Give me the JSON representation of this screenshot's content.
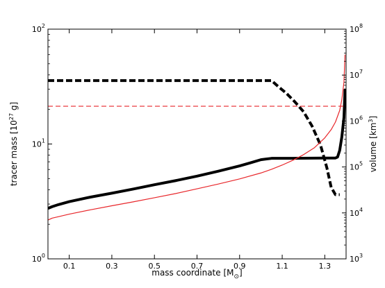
{
  "chart_data": {
    "type": "line",
    "title": "",
    "xlabel_main": "mass coordinate [M",
    "xlabel_sub": "⊙",
    "xlabel_end": "]",
    "ylabel_left_main": "tracer mass [10",
    "ylabel_left_sup": "27",
    "ylabel_left_end": " g]",
    "ylabel_right_main": "volume [km",
    "ylabel_right_sup": "3",
    "ylabel_right_end": "]",
    "xlim": [
      0.0,
      1.4
    ],
    "ylim_left": [
      1,
      100
    ],
    "ylim_right": [
      1000,
      100000000
    ],
    "yscale": "log",
    "grid": false,
    "x_ticks": [
      {
        "value": 0.1,
        "label": "0.1"
      },
      {
        "value": 0.3,
        "label": "0.3"
      },
      {
        "value": 0.5,
        "label": "0.5"
      },
      {
        "value": 0.7,
        "label": "0.7"
      },
      {
        "value": 0.9,
        "label": "0.9"
      },
      {
        "value": 1.1,
        "label": "1.1"
      },
      {
        "value": 1.3,
        "label": "1.3"
      }
    ],
    "y_left_ticks": [
      {
        "value": 1,
        "base": "10",
        "exp": "0"
      },
      {
        "value": 10,
        "base": "10",
        "exp": "1"
      },
      {
        "value": 100,
        "base": "10",
        "exp": "2"
      }
    ],
    "y_right_ticks": [
      {
        "value": 1000,
        "base": "10",
        "exp": "3"
      },
      {
        "value": 10000,
        "base": "10",
        "exp": "4"
      },
      {
        "value": 100000,
        "base": "10",
        "exp": "5"
      },
      {
        "value": 1000000,
        "base": "10",
        "exp": "6"
      },
      {
        "value": 10000000,
        "base": "10",
        "exp": "7"
      },
      {
        "value": 100000000,
        "base": "10",
        "exp": "8"
      }
    ],
    "series": [
      {
        "axis": "left",
        "color": "#000000",
        "style": "solid",
        "width": 4,
        "x": [
          0.0,
          0.02,
          0.05,
          0.1,
          0.2,
          0.3,
          0.4,
          0.5,
          0.6,
          0.7,
          0.8,
          0.9,
          0.95,
          1.0,
          1.05,
          1.1,
          1.15,
          1.2,
          1.25,
          1.3,
          1.35,
          1.36,
          1.37,
          1.38,
          1.39,
          1.395
        ],
        "y": [
          2.75,
          2.85,
          2.97,
          3.15,
          3.45,
          3.73,
          4.05,
          4.42,
          4.8,
          5.25,
          5.8,
          6.45,
          6.85,
          7.3,
          7.5,
          7.5,
          7.5,
          7.52,
          7.53,
          7.55,
          7.55,
          7.7,
          8.8,
          11.5,
          17.0,
          30.0
        ]
      },
      {
        "axis": "right",
        "color": "#000000",
        "style": "dashed",
        "width": 4,
        "x": [
          0.0,
          0.2,
          0.4,
          0.6,
          0.8,
          1.0,
          1.05,
          1.08,
          1.12,
          1.16,
          1.2,
          1.24,
          1.28,
          1.31,
          1.33,
          1.35,
          1.37
        ],
        "y": [
          7600000,
          7600000,
          7600000,
          7600000,
          7600000,
          7600000,
          7600000,
          5700000,
          4000000,
          2600000,
          1600000,
          780000,
          300000,
          95000,
          36000,
          25000,
          25000
        ]
      },
      {
        "axis": "right",
        "color": "#e8262a",
        "style": "solid",
        "width": 1.2,
        "x": [
          0.0,
          0.02,
          0.05,
          0.1,
          0.2,
          0.3,
          0.4,
          0.5,
          0.6,
          0.7,
          0.8,
          0.9,
          1.0,
          1.05,
          1.1,
          1.15,
          1.2,
          1.25,
          1.3,
          1.33,
          1.35,
          1.37,
          1.38,
          1.39,
          1.395
        ],
        "y": [
          7000,
          7700,
          8300,
          9400,
          11700,
          14300,
          17400,
          21400,
          26400,
          33500,
          42500,
          55000,
          74000,
          89000,
          110000,
          140000,
          185000,
          260000,
          430000,
          650000,
          950000,
          1700000,
          2900000,
          7000000,
          28000000
        ]
      },
      {
        "axis": "right",
        "color": "#e8262a",
        "style": "dashed",
        "width": 1.2,
        "x": [
          0.0,
          1.4
        ],
        "y": [
          2100000,
          2100000
        ]
      }
    ]
  }
}
